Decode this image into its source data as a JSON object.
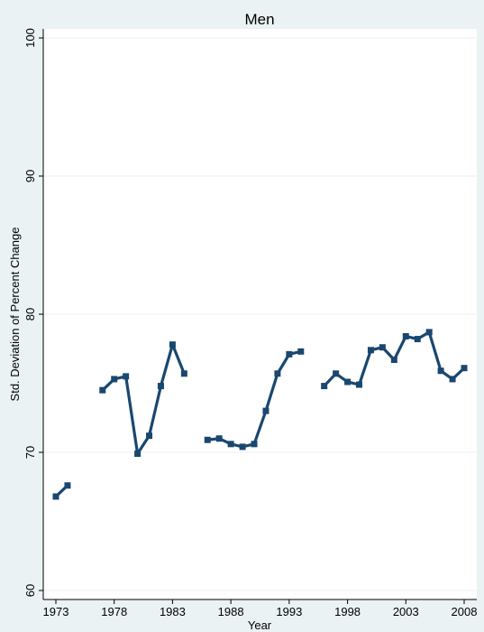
{
  "chart_data": {
    "type": "line",
    "title": "Men",
    "xlabel": "Year",
    "ylabel": "Std. Deviation of Percent Change",
    "xlim": [
      1973,
      2008
    ],
    "ylim": [
      60,
      100
    ],
    "x_ticks": [
      1973,
      1978,
      1983,
      1988,
      1993,
      1998,
      2003,
      2008
    ],
    "x_tick_labels": [
      "1973",
      "1978",
      "1983",
      "1988",
      "1993",
      "1998",
      "2003",
      "2008"
    ],
    "y_ticks": [
      60,
      70,
      80,
      90,
      100
    ],
    "y_tick_labels": [
      "60",
      "70",
      "80",
      "90",
      "100"
    ],
    "grid": true,
    "legend": "none",
    "series": [
      {
        "color": "#1a476f",
        "marker": "square",
        "segments": [
          {
            "x": [
              1973,
              1974
            ],
            "y": [
              66.8,
              67.6
            ]
          },
          {
            "x": [
              1977,
              1978,
              1979,
              1980,
              1981,
              1982,
              1983,
              1984
            ],
            "y": [
              74.5,
              75.3,
              75.5,
              69.9,
              71.2,
              74.8,
              77.8,
              75.7
            ]
          },
          {
            "x": [
              1986,
              1987,
              1988,
              1989,
              1990,
              1991,
              1992,
              1993,
              1994
            ],
            "y": [
              70.9,
              71.0,
              70.6,
              70.4,
              70.6,
              73.0,
              75.7,
              77.1,
              77.3
            ]
          },
          {
            "x": [
              1996,
              1997,
              1998,
              1999,
              2000,
              2001,
              2002,
              2003,
              2004,
              2005,
              2006,
              2007,
              2008
            ],
            "y": [
              74.8,
              75.7,
              75.1,
              74.9,
              77.4,
              77.6,
              76.7,
              78.4,
              78.2,
              78.7,
              75.9,
              75.3,
              76.1
            ]
          }
        ]
      }
    ]
  }
}
